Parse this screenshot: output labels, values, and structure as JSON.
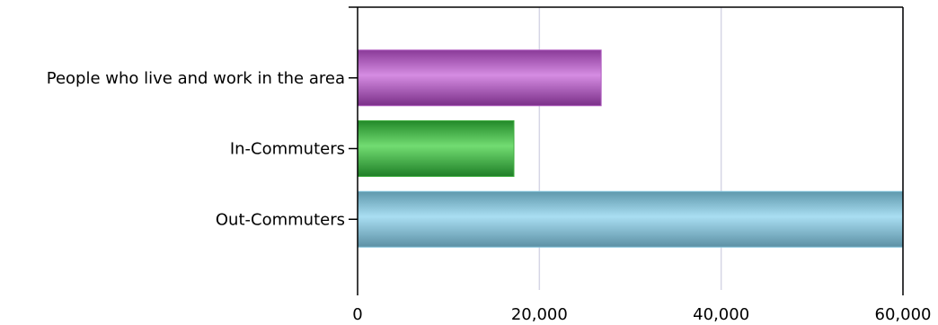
{
  "chart_data": {
    "type": "bar",
    "orientation": "horizontal",
    "categories": [
      "People who live and work in the area",
      "In-Commuters",
      "Out-Commuters"
    ],
    "values": [
      26800,
      17200,
      60000
    ],
    "colors": [
      "#b05cc0",
      "#3fae3f",
      "#84c4dc"
    ],
    "xlim": [
      0,
      60000
    ],
    "xticks": [
      0,
      20000,
      40000,
      60000
    ],
    "xtick_labels": [
      "0",
      "20,000",
      "40,000",
      "60,000"
    ],
    "grid": true,
    "title": "",
    "xlabel": "",
    "ylabel": ""
  }
}
